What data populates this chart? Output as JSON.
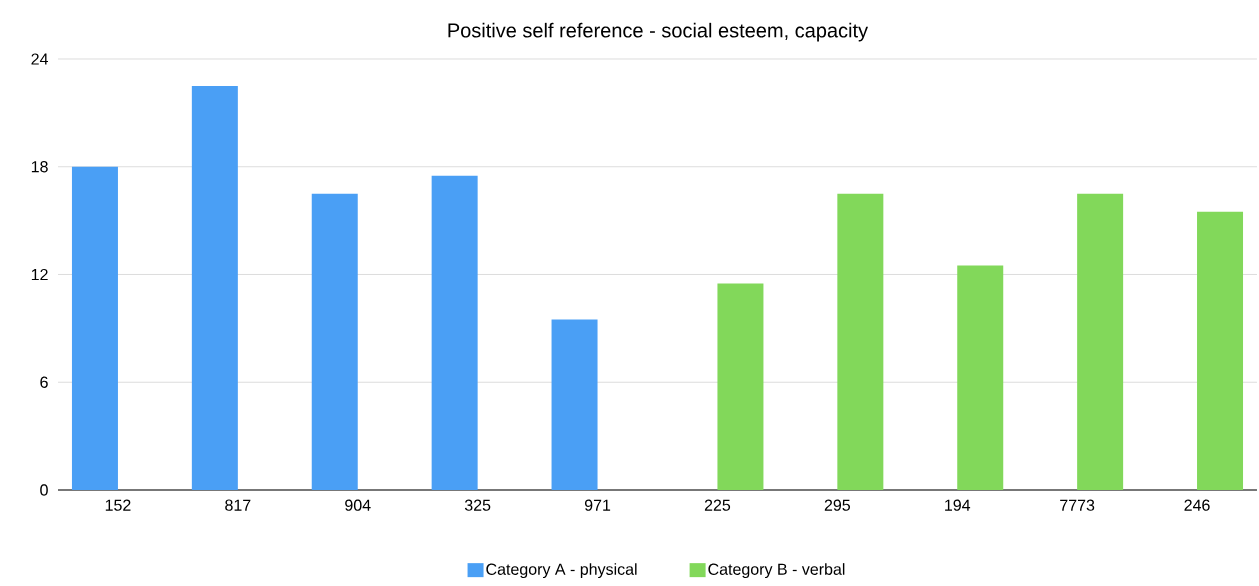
{
  "chart_data": {
    "type": "bar",
    "title": "Positive self reference - social esteem, capacity",
    "categories": [
      "152",
      "817",
      "904",
      "325",
      "971",
      "225",
      "295",
      "194",
      "7773",
      "246"
    ],
    "series": [
      {
        "name": "Category A - physical",
        "color": "#4a9ff5",
        "values": [
          18,
          22.5,
          16.5,
          17.5,
          9.5,
          null,
          null,
          null,
          null,
          null
        ]
      },
      {
        "name": "Category B - verbal",
        "color": "#82d85a",
        "values": [
          null,
          null,
          null,
          null,
          null,
          11.5,
          16.5,
          12.5,
          16.5,
          15.5
        ]
      }
    ],
    "ylim": [
      0,
      24
    ],
    "yticks": [
      0,
      6,
      12,
      18,
      24
    ],
    "grid": "y",
    "legend": "bottom"
  }
}
